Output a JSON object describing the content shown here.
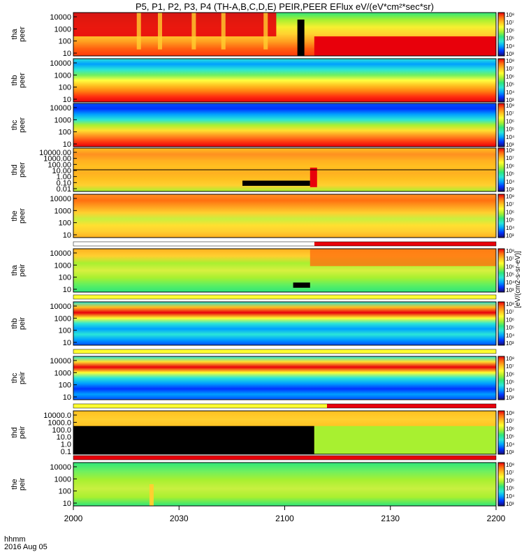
{
  "chart_data": {
    "type": "heatmap",
    "title": "P5, P1, P2, P3, P4 (TH-A,B,C,D,E) PEIR,PEER EFlux eV/(eV*cm²*sec*sr)",
    "x_axis": {
      "unit_label": "hhmm",
      "date_label": "2016 Aug 05",
      "ticks": [
        "2000",
        "2030",
        "2100",
        "2130",
        "2200"
      ],
      "range": [
        "2000",
        "2200"
      ]
    },
    "colorbar_label": "[eV/(cm2-s-sr-eV)]",
    "colorbar_ticks": [
      "10³",
      "10⁴",
      "10⁵",
      "10⁶",
      "10⁷",
      "10⁸"
    ],
    "colormap": [
      "#1a0b6e",
      "#0033ff",
      "#00a0ff",
      "#2ae6d8",
      "#2ee67a",
      "#a8f030",
      "#ffff30",
      "#ffc020",
      "#ff7010",
      "#e8000b"
    ],
    "panels": [
      {
        "probe": "tha",
        "species": "peer",
        "yticks": [
          "10",
          "100",
          "1000",
          "10000"
        ],
        "log_y": true
      },
      {
        "probe": "thb",
        "species": "peer",
        "yticks": [
          "10",
          "100",
          "1000",
          "10000"
        ],
        "log_y": true
      },
      {
        "probe": "thc",
        "species": "peer",
        "yticks": [
          "10",
          "100",
          "1000",
          "10000"
        ],
        "log_y": true
      },
      {
        "probe": "thd",
        "species": "peer",
        "yticks": [
          "0.01",
          "0.10",
          "1.00",
          "10.00",
          "100.00",
          "1000.00",
          "10000.00"
        ],
        "log_y": true
      },
      {
        "probe": "the",
        "species": "peer",
        "yticks": [
          "10",
          "100",
          "1000",
          "10000"
        ],
        "log_y": true
      },
      {
        "probe": "tha",
        "species": "peir",
        "yticks": [
          "10",
          "100",
          "1000",
          "10000"
        ],
        "log_y": true
      },
      {
        "probe": "thb",
        "species": "peir",
        "yticks": [
          "10",
          "100",
          "1000",
          "10000"
        ],
        "log_y": true
      },
      {
        "probe": "thc",
        "species": "peir",
        "yticks": [
          "10",
          "100",
          "1000",
          "10000"
        ],
        "log_y": true
      },
      {
        "probe": "thd",
        "species": "peir",
        "yticks": [
          "0.1",
          "1.0",
          "10.0",
          "100.0",
          "1000.0",
          "10000.0"
        ],
        "log_y": true
      },
      {
        "probe": "the",
        "species": "peir",
        "yticks": [
          "10",
          "100",
          "1000",
          "10000"
        ],
        "log_y": true
      }
    ]
  }
}
